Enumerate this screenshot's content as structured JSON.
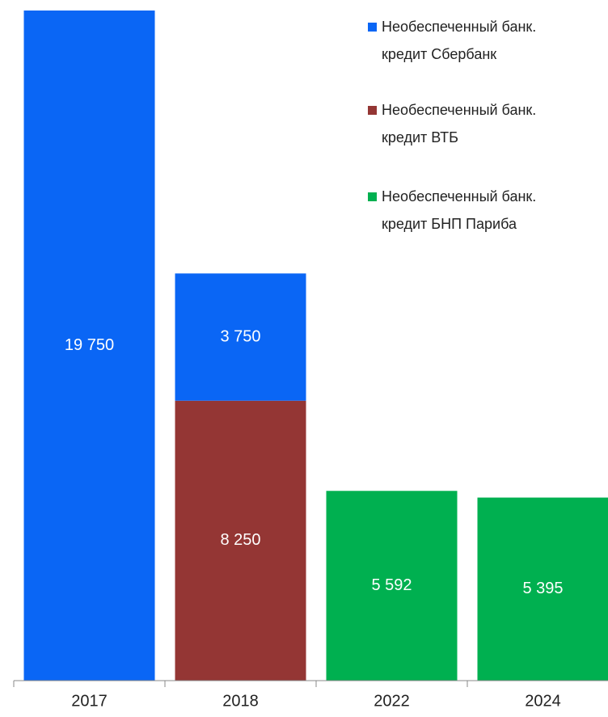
{
  "chart_data": {
    "type": "stacked_bar",
    "categories": [
      "2017",
      "2018",
      "2022",
      "2024"
    ],
    "series": [
      {
        "name": "Необеспеченный банк. кредит Сбербанк",
        "color": "#0a66f5",
        "values": [
          19750,
          3750,
          null,
          null
        ],
        "value_labels": [
          "19 750",
          "3 750",
          null,
          null
        ]
      },
      {
        "name": "Необеспеченный банк. кредит ВТБ",
        "color": "#943634",
        "values": [
          null,
          8250,
          null,
          null
        ],
        "value_labels": [
          null,
          "8 250",
          null,
          null
        ]
      },
      {
        "name": "Необеспеченный банк. кредит БНП Париба",
        "color": "#00b050",
        "values": [
          null,
          null,
          5592,
          5395
        ],
        "value_labels": [
          null,
          null,
          "5 592",
          "5 395"
        ]
      }
    ]
  }
}
